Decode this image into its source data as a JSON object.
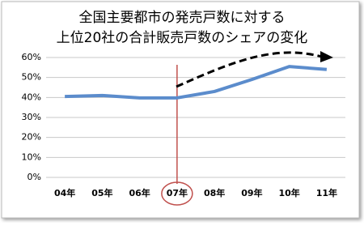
{
  "chart_data": {
    "type": "line",
    "title": [
      "全国主要都市の発売戸数に対する",
      "上位20社の合計販売戸数のシェアの変化"
    ],
    "categories": [
      "04年",
      "05年",
      "06年",
      "07年",
      "08年",
      "09年",
      "10年",
      "11年"
    ],
    "values": [
      40.5,
      41,
      39.8,
      39.8,
      43,
      49,
      55.5,
      54
    ],
    "color": "#5b8ccc",
    "ylim": [
      0,
      60
    ],
    "yticks": [
      {
        "value": 0,
        "label": "0%"
      },
      {
        "value": 10,
        "label": "10%"
      },
      {
        "value": 20,
        "label": "20%"
      },
      {
        "value": 30,
        "label": "30%"
      },
      {
        "value": 40,
        "label": "40%"
      },
      {
        "value": 50,
        "label": "50%"
      },
      {
        "value": 60,
        "label": "60%"
      }
    ],
    "grid": true
  }
}
